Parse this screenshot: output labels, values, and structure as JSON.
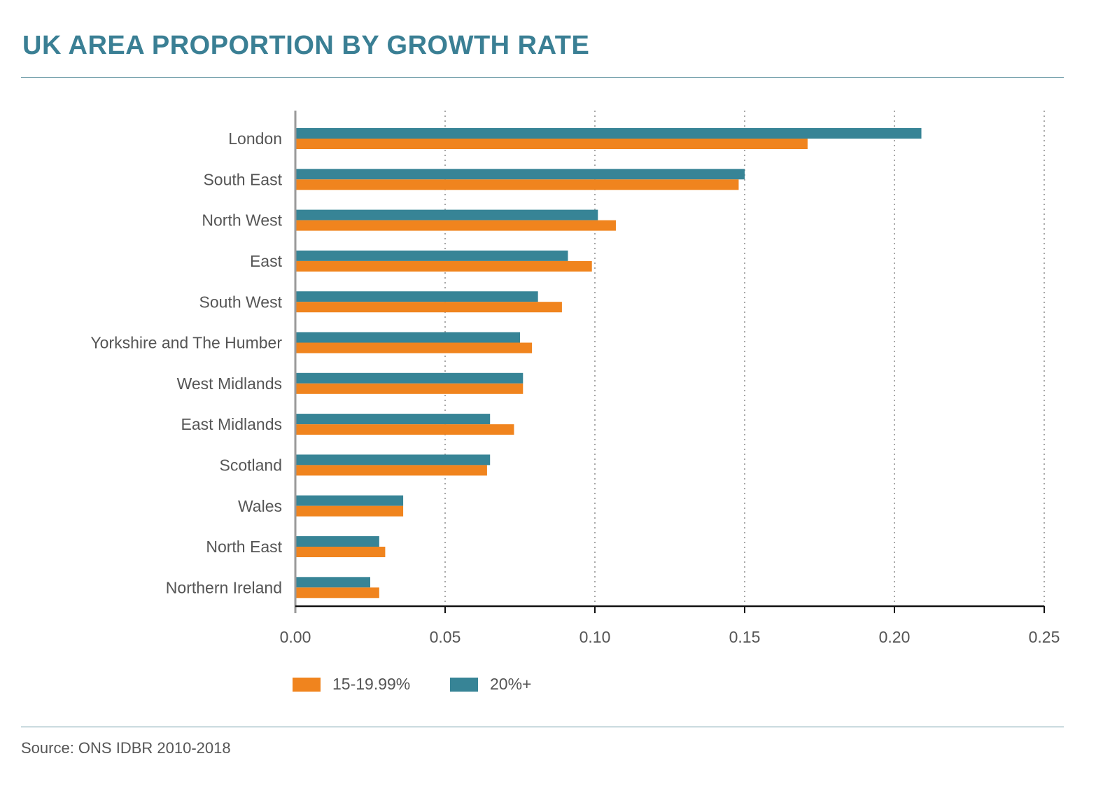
{
  "header": {
    "title": "UK AREA PROPORTION BY GROWTH RATE"
  },
  "footer": {
    "source": "Source: ONS IDBR 2010-2018"
  },
  "colors": {
    "title": "#3a7f94",
    "series_15": "#f0841e",
    "series_20": "#378496",
    "axis": "#111111",
    "grid": "#8a8a8a",
    "text": "#555555"
  },
  "chart_data": {
    "type": "bar",
    "orientation": "horizontal",
    "title": "UK AREA PROPORTION BY GROWTH RATE",
    "categories": [
      "London",
      "South East",
      "North West",
      "East",
      "South West",
      "Yorkshire and The Humber",
      "West Midlands",
      "East Midlands",
      "Scotland",
      "Wales",
      "North East",
      "Northern Ireland"
    ],
    "series": [
      {
        "name": "20%+",
        "values": [
          0.209,
          0.15,
          0.101,
          0.091,
          0.081,
          0.075,
          0.076,
          0.065,
          0.065,
          0.036,
          0.028,
          0.025
        ]
      },
      {
        "name": "15-19.99%",
        "values": [
          0.171,
          0.148,
          0.107,
          0.099,
          0.089,
          0.079,
          0.076,
          0.073,
          0.064,
          0.036,
          0.03,
          0.028
        ]
      }
    ],
    "xlim": [
      0,
      0.25
    ],
    "xticks": [
      "0.00",
      "0.05",
      "0.10",
      "0.15",
      "0.20",
      "0.25"
    ],
    "xtick_values": [
      0,
      0.05,
      0.1,
      0.15,
      0.2,
      0.25
    ],
    "grid": "vertical-dotted",
    "legend": {
      "placement": "bottom",
      "entries": [
        "15-19.99%",
        "20%+"
      ]
    },
    "xlabel": "",
    "ylabel": ""
  }
}
